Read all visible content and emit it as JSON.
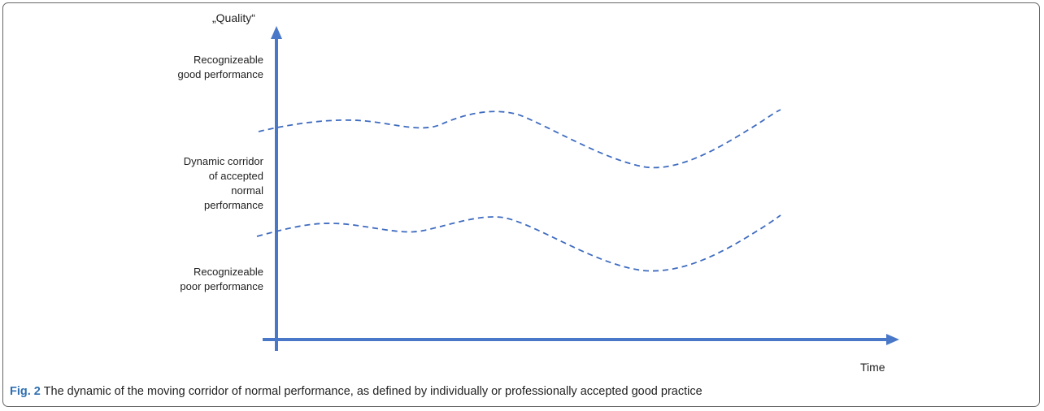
{
  "diagram": {
    "y_axis_title": "„Quality“",
    "x_axis_title": "Time",
    "zones": {
      "good": [
        "Recognizeable",
        "good performance"
      ],
      "corridor": [
        "Dynamic corridor",
        "of accepted",
        "normal",
        "performance"
      ],
      "poor": [
        "Recognizeable",
        "poor performance"
      ]
    },
    "line_color": "#4a78c8",
    "dash_color": "#3f6cc0"
  },
  "caption": {
    "label": "Fig. 2",
    "text": " The dynamic of the moving corridor of normal performance, as defined by individually or professionally accepted good practice"
  }
}
